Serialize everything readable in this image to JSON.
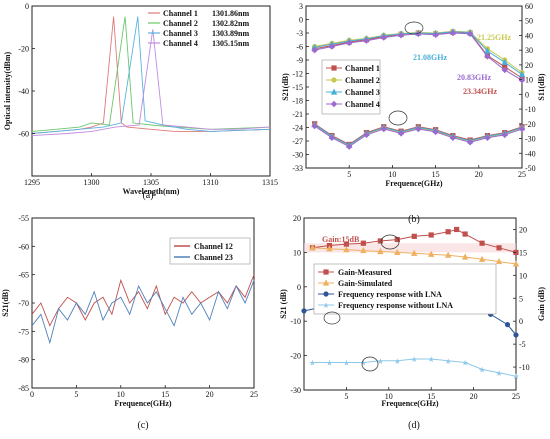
{
  "chart_data": [
    {
      "panel": "(a)",
      "type": "line",
      "xlabel": "Wavelength(nm)",
      "ylabel": "Optical intensity(dBm)",
      "xlim": [
        1295,
        1315
      ],
      "ylim": [
        -80,
        0
      ],
      "xticks": [
        1295,
        1300,
        1305,
        1310,
        1315
      ],
      "yticks": [
        -60,
        -40,
        -20,
        0
      ],
      "legend": "top-right",
      "series": [
        {
          "name": "Channel 1",
          "peak_label": "1301.86nm",
          "color": "#e07a7a",
          "peak": 1301.86,
          "x": [
            1295,
            1297,
            1299,
            1300,
            1301,
            1301.86,
            1302.5,
            1303,
            1305,
            1307,
            1310,
            1315
          ],
          "y": [
            -60,
            -59,
            -58,
            -57,
            -55,
            -5,
            -55,
            -57,
            -58,
            -59,
            -59,
            -58
          ]
        },
        {
          "name": "Channel 2",
          "peak_label": "1302.82nm",
          "color": "#6cc86c",
          "peak": 1302.82,
          "x": [
            1295,
            1297,
            1299,
            1300,
            1301.5,
            1302.82,
            1303.5,
            1305,
            1307,
            1310,
            1315
          ],
          "y": [
            -59,
            -58,
            -57,
            -55,
            -56,
            -5,
            -55,
            -56,
            -57,
            -58,
            -57
          ]
        },
        {
          "name": "Channel 3",
          "peak_label": "1303.89nm",
          "color": "#5ab4e0",
          "peak": 1303.89,
          "x": [
            1295,
            1297,
            1299,
            1301,
            1302.5,
            1303.89,
            1304.5,
            1306,
            1308,
            1310,
            1315
          ],
          "y": [
            -60,
            -59,
            -58,
            -57,
            -55,
            -5,
            -54,
            -56,
            -58,
            -59,
            -58
          ]
        },
        {
          "name": "Channel 4",
          "peak_label": "1305.15nm",
          "color": "#c08ce0",
          "peak": 1305.15,
          "x": [
            1295,
            1298,
            1300,
            1302,
            1304,
            1305.15,
            1306,
            1308,
            1310,
            1312,
            1315
          ],
          "y": [
            -61,
            -60,
            -59,
            -57,
            -56,
            -11,
            -56,
            -57,
            -58,
            -58,
            -57
          ]
        }
      ]
    },
    {
      "panel": "(b)",
      "type": "line",
      "xlabel": "Frequence(GHz)",
      "ylabel": "S21(dB)",
      "ylabel_right": "S11(dB)",
      "xlim": [
        0,
        25
      ],
      "ylim": [
        -33,
        3
      ],
      "ylim_right": [
        -50,
        60
      ],
      "xticks": [
        5,
        10,
        15,
        20,
        25
      ],
      "yticks": [
        3,
        0,
        -3,
        -6,
        -9,
        -12,
        -15,
        -18,
        -21,
        -24,
        -27,
        -30,
        -33
      ],
      "yticks_right": [
        60,
        50,
        40,
        30,
        20,
        10,
        0,
        -10,
        -20,
        -30,
        -40,
        -50
      ],
      "legend": "center-left",
      "annotations": [
        "21.25GHz",
        "21.08GHz",
        "20.83GHz",
        "23.34GHz"
      ],
      "series_s21": [
        {
          "name": "Channel 1",
          "color": "#c0504d",
          "marker": "square",
          "x": [
            1,
            3,
            5,
            7,
            9,
            11,
            13,
            15,
            17,
            19,
            21,
            23,
            25
          ],
          "y": [
            -6.5,
            -5.8,
            -5,
            -4.5,
            -3.8,
            -3.3,
            -3,
            -3.2,
            -2.8,
            -3,
            -8,
            -10.5,
            -13
          ]
        },
        {
          "name": "Channel 2",
          "color": "#c8c850",
          "marker": "circle",
          "x": [
            1,
            3,
            5,
            7,
            9,
            11,
            13,
            15,
            17,
            19,
            21,
            23,
            25
          ],
          "y": [
            -6,
            -5.3,
            -4.6,
            -4.2,
            -3.5,
            -3.1,
            -2.9,
            -3,
            -2.6,
            -2.8,
            -6.5,
            -9,
            -11.8
          ]
        },
        {
          "name": "Channel 3",
          "color": "#48b0d8",
          "marker": "triangle",
          "x": [
            1,
            3,
            5,
            7,
            9,
            11,
            13,
            15,
            17,
            19,
            21,
            23,
            25
          ],
          "y": [
            -6.2,
            -5.5,
            -4.8,
            -4.3,
            -3.6,
            -3.2,
            -3,
            -3.1,
            -2.7,
            -2.9,
            -7,
            -9.5,
            -12.2
          ]
        },
        {
          "name": "Channel 4",
          "color": "#9b6ad0",
          "marker": "diamond",
          "x": [
            1,
            3,
            5,
            7,
            9,
            11,
            13,
            15,
            17,
            19,
            21,
            23,
            25
          ],
          "y": [
            -6.8,
            -6,
            -5.2,
            -4.7,
            -4,
            -3.5,
            -3.2,
            -3.4,
            -3,
            -3.2,
            -8.2,
            -11.2,
            -13.5
          ]
        }
      ],
      "series_s11": [
        {
          "name": "Channel 1",
          "color": "#c0504d",
          "x": [
            1,
            3,
            5,
            7,
            9,
            11,
            13,
            15,
            17,
            19,
            21,
            23,
            25
          ],
          "y": [
            -20,
            -28,
            -34,
            -26,
            -22,
            -25,
            -22,
            -24,
            -28,
            -31,
            -28,
            -26,
            -22
          ]
        },
        {
          "name": "Channel 2",
          "color": "#c8c850",
          "x": [
            1,
            3,
            5,
            7,
            9,
            11,
            13,
            15,
            17,
            19,
            21,
            23,
            25
          ],
          "y": [
            -21,
            -29,
            -35,
            -27,
            -23,
            -26,
            -23,
            -25,
            -29,
            -32,
            -29,
            -27,
            -23
          ]
        },
        {
          "name": "Channel 3",
          "color": "#48b0d8",
          "x": [
            1,
            3,
            5,
            7,
            9,
            11,
            13,
            15,
            17,
            19,
            21,
            23,
            25
          ],
          "y": [
            -20.5,
            -28.5,
            -34.5,
            -26.5,
            -22.5,
            -25.5,
            -22.5,
            -24.5,
            -28.5,
            -31.5,
            -28.5,
            -26.5,
            -22.5
          ]
        },
        {
          "name": "Channel 4",
          "color": "#9b6ad0",
          "x": [
            1,
            3,
            5,
            7,
            9,
            11,
            13,
            15,
            17,
            19,
            21,
            23,
            25
          ],
          "y": [
            -21.5,
            -29.5,
            -35.5,
            -27.5,
            -23.5,
            -26.5,
            -23.5,
            -25.5,
            -29.5,
            -32.5,
            -29.5,
            -27.5,
            -23.5
          ]
        }
      ]
    },
    {
      "panel": "(c)",
      "type": "line",
      "xlabel": "Frequence(GHz)",
      "ylabel": "S21(dB)",
      "xlim": [
        0,
        25
      ],
      "ylim": [
        -85,
        -55
      ],
      "xticks": [
        0,
        5,
        10,
        15,
        20,
        25
      ],
      "yticks": [
        -55,
        -60,
        -65,
        -70,
        -75,
        -80,
        -85
      ],
      "legend": "top-right",
      "series": [
        {
          "name": "Channel 12",
          "color": "#c0504d",
          "x": [
            0,
            1,
            2,
            3,
            4,
            5,
            6,
            7,
            8,
            9,
            10,
            11,
            12,
            13,
            14,
            15,
            16,
            17,
            18,
            19,
            20,
            21,
            22,
            23,
            24,
            25
          ],
          "y": [
            -72,
            -70,
            -74,
            -71,
            -69,
            -70,
            -73,
            -70,
            -69,
            -72,
            -66,
            -70,
            -68,
            -71,
            -67,
            -72,
            -69,
            -70,
            -68,
            -70,
            -69,
            -68,
            -70,
            -67,
            -69,
            -65
          ]
        },
        {
          "name": "Channel 23",
          "color": "#4f81bd",
          "x": [
            0,
            1,
            2,
            3,
            4,
            5,
            6,
            7,
            8,
            9,
            10,
            11,
            12,
            13,
            14,
            15,
            16,
            17,
            18,
            19,
            20,
            21,
            22,
            23,
            24,
            25
          ],
          "y": [
            -74,
            -72,
            -77,
            -71,
            -73,
            -70,
            -72,
            -68,
            -73,
            -70,
            -69,
            -72,
            -67,
            -70,
            -68,
            -71,
            -74,
            -69,
            -72,
            -70,
            -73,
            -68,
            -71,
            -67,
            -70,
            -66
          ]
        }
      ]
    },
    {
      "panel": "(d)",
      "type": "line",
      "xlabel": "Frequence(GHz)",
      "ylabel": "S21 (dB)",
      "ylabel_right": "Gain (dB)",
      "xlim": [
        0,
        25
      ],
      "ylim": [
        -30,
        20
      ],
      "ylim_right": [
        -15,
        22.5
      ],
      "xticks": [
        5,
        10,
        15,
        20,
        25
      ],
      "yticks": [
        20,
        10,
        0,
        -10,
        -20,
        -30
      ],
      "yticks_right": [
        20,
        15,
        10,
        5,
        0,
        -5,
        -10
      ],
      "annotation": "Gain:15dB",
      "gain_band": [
        15,
        17
      ],
      "legend": "center",
      "series": [
        {
          "name": "Gain-Measured",
          "color": "#c0504d",
          "marker": "square",
          "axis": "right",
          "x": [
            1,
            3,
            5,
            7,
            9,
            11,
            13,
            15,
            17,
            18,
            19,
            21,
            23,
            25
          ],
          "y": [
            16,
            16.5,
            16.8,
            17,
            17.5,
            17.8,
            18.5,
            18.8,
            19.5,
            20,
            19,
            17,
            16,
            15
          ]
        },
        {
          "name": "Gain-Simulated",
          "color": "#f0b060",
          "marker": "triangle",
          "axis": "right",
          "x": [
            1,
            3,
            5,
            7,
            9,
            11,
            13,
            15,
            17,
            19,
            21,
            23,
            25
          ],
          "y": [
            16,
            15.8,
            15.6,
            15.4,
            15.2,
            15,
            14.8,
            14.6,
            14.4,
            14,
            13.5,
            13,
            12.5
          ]
        },
        {
          "name": "Frequency response with LNA",
          "color": "#2f5597",
          "marker": "circle",
          "axis": "left",
          "x": [
            0,
            2,
            4,
            6,
            8,
            10,
            12,
            14,
            16,
            18,
            20,
            22,
            24,
            25
          ],
          "y": [
            -7,
            -6,
            -5,
            -5,
            -4.5,
            -4,
            -3,
            -3,
            -3,
            -3.5,
            -7,
            -8,
            -11,
            -14
          ]
        },
        {
          "name": "Frequency response without LNA",
          "color": "#8fc8e8",
          "marker": "star",
          "axis": "left",
          "x": [
            1,
            3,
            5,
            7,
            9,
            11,
            13,
            15,
            17,
            19,
            21,
            23,
            25
          ],
          "y": [
            -22,
            -22,
            -22,
            -22,
            -21.5,
            -21.5,
            -21,
            -21,
            -21.5,
            -22,
            -24,
            -25,
            -26
          ]
        }
      ]
    }
  ]
}
